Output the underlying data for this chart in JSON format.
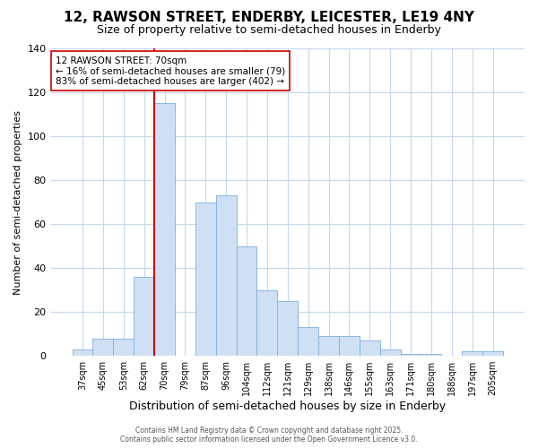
{
  "title1": "12, RAWSON STREET, ENDERBY, LEICESTER, LE19 4NY",
  "title2": "Size of property relative to semi-detached houses in Enderby",
  "xlabel": "Distribution of semi-detached houses by size in Enderby",
  "ylabel": "Number of semi-detached properties",
  "categories": [
    "37sqm",
    "45sqm",
    "53sqm",
    "62sqm",
    "70sqm",
    "79sqm",
    "87sqm",
    "96sqm",
    "104sqm",
    "112sqm",
    "121sqm",
    "129sqm",
    "138sqm",
    "146sqm",
    "155sqm",
    "163sqm",
    "171sqm",
    "180sqm",
    "188sqm",
    "197sqm",
    "205sqm"
  ],
  "values": [
    3,
    8,
    8,
    36,
    115,
    0,
    70,
    73,
    50,
    30,
    25,
    13,
    9,
    9,
    7,
    3,
    1,
    1,
    0,
    2,
    2
  ],
  "bar_color": "#cfe0f5",
  "bar_edge_color": "#7ab0e0",
  "highlight_index": 4,
  "highlight_line_color": "#cc0000",
  "annotation_text": "12 RAWSON STREET: 70sqm\n← 16% of semi-detached houses are smaller (79)\n83% of semi-detached houses are larger (402) →",
  "annotation_box_color": "#ffffff",
  "annotation_box_edge_color": "#cc0000",
  "ylim": [
    0,
    140
  ],
  "yticks": [
    0,
    20,
    40,
    60,
    80,
    100,
    120,
    140
  ],
  "fig_background": "#ffffff",
  "plot_background": "#ffffff",
  "grid_color": "#c5d8f0",
  "footer_text": "Contains HM Land Registry data © Crown copyright and database right 2025.\nContains public sector information licensed under the Open Government Licence v3.0.",
  "title1_fontsize": 11,
  "title2_fontsize": 9,
  "ylabel_fontsize": 8,
  "xlabel_fontsize": 9,
  "annotation_fontsize": 7.5
}
